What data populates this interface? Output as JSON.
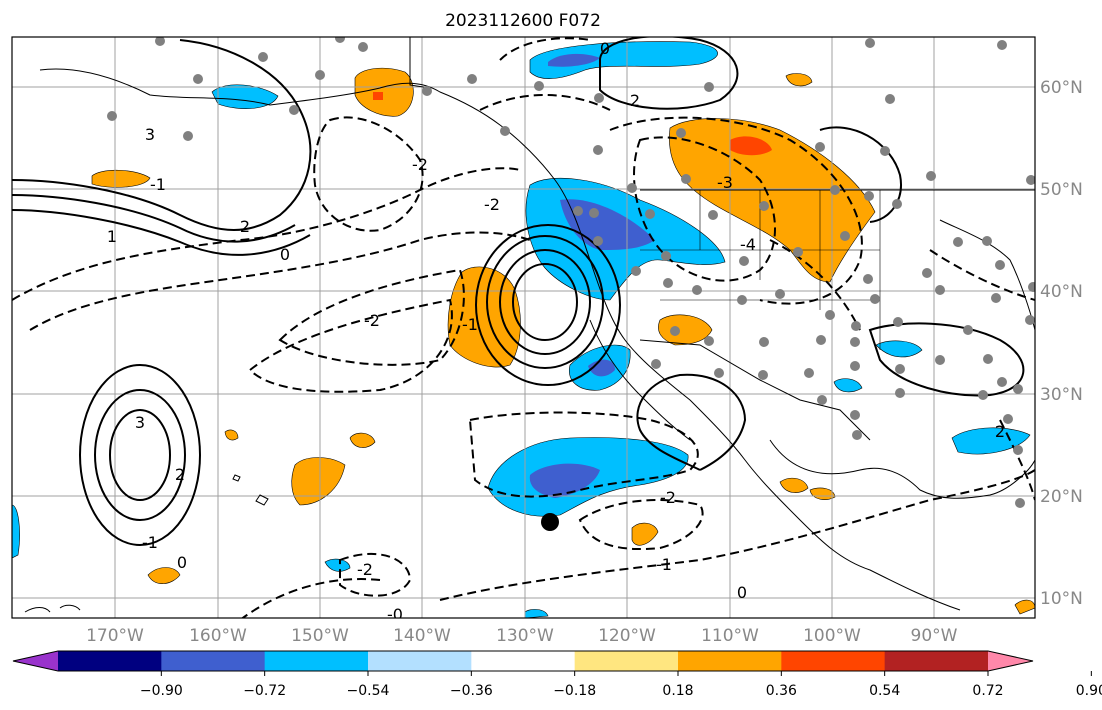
{
  "title": "2023112600 F072",
  "map": {
    "projection": "PlateCarree",
    "lon_range": [
      -180,
      -80
    ],
    "lat_range": [
      7.5,
      65
    ],
    "longitude_labels": [
      "170°W",
      "160°W",
      "150°W",
      "140°W",
      "130°W",
      "120°W",
      "110°W",
      "100°W",
      "90°W"
    ],
    "latitude_labels": [
      "60°N",
      "50°N",
      "40°N",
      "30°N",
      "20°N",
      "10°N"
    ],
    "gridlines": true,
    "coastline_color": "#000000",
    "gridline_color": "#a0a0a0"
  },
  "colorbar": {
    "orientation": "horizontal",
    "extend": "both",
    "tick_labels": [
      "−0.90",
      "−0.72",
      "−0.54",
      "−0.36",
      "−0.18",
      "0.18",
      "0.36",
      "0.54",
      "0.72",
      "0.90"
    ],
    "colors": [
      "#9933cc",
      "#000080",
      "#3f5fcf",
      "#00bfff",
      "#b3e0ff",
      "#ffffff",
      "#ffe680",
      "#ffa500",
      "#ff4500",
      "#b22222",
      "#ff88aa"
    ]
  },
  "contour_labels": [
    "0",
    "2",
    "3",
    "-2",
    "-1",
    "-3",
    "-4",
    "-2",
    "2",
    "0",
    "1",
    "-2",
    "-1",
    "3",
    "2",
    "-1",
    "0",
    "-2",
    "-2",
    "-1",
    "0",
    "-0",
    "2"
  ],
  "markers": {
    "station_color": "#808080",
    "storm_center_color": "#000000"
  }
}
